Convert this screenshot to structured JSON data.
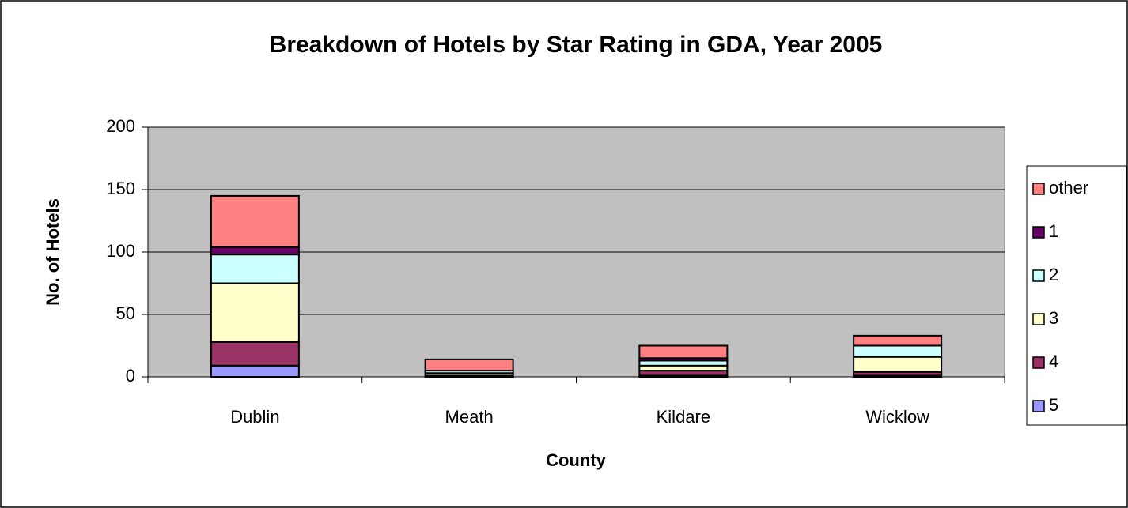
{
  "chart_data": {
    "type": "stacked_bar",
    "title": "Breakdown of Hotels by Star Rating in GDA, Year 2005",
    "xlabel": "County",
    "ylabel": "No. of Hotels",
    "categories": [
      "Dublin",
      "Meath",
      "Kildare",
      "Wicklow"
    ],
    "series": [
      {
        "name": "5",
        "color": "#9999ff",
        "values": [
          9,
          0,
          1,
          1
        ]
      },
      {
        "name": "4",
        "color": "#993366",
        "values": [
          19,
          1,
          4,
          3
        ]
      },
      {
        "name": "3",
        "color": "#ffffcc",
        "values": [
          47,
          2,
          4,
          12
        ]
      },
      {
        "name": "2",
        "color": "#ccffff",
        "values": [
          23,
          2,
          4,
          9
        ]
      },
      {
        "name": "1",
        "color": "#660066",
        "values": [
          6,
          0,
          2,
          0
        ]
      },
      {
        "name": "other",
        "color": "#ff8080",
        "values": [
          41,
          9,
          10,
          8
        ]
      }
    ],
    "ylim": [
      0,
      200
    ],
    "yticks": [
      0,
      50,
      100,
      150,
      200
    ],
    "grid": true,
    "legend": "right",
    "plot_background": "#c0c0c0"
  }
}
